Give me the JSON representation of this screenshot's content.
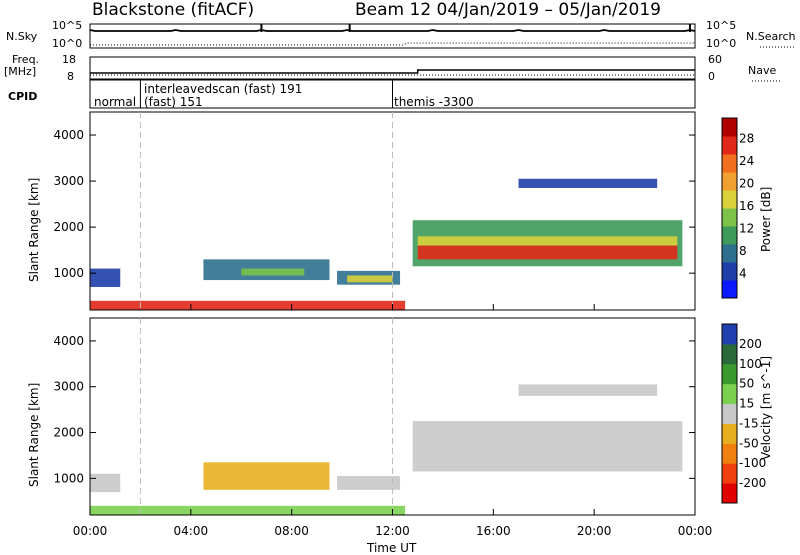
{
  "header": {
    "title": "Blackstone (fitACF)",
    "subtitle": "Beam 12  04/Jan/2019 – 05/Jan/2019"
  },
  "side_labels": {
    "nsky": "N.Sky",
    "freq": "Freq.",
    "freq_unit": "[MHz]",
    "cpid": "CPID",
    "nsearch": "N.Search",
    "nave": "Nave"
  },
  "strip_ticks": {
    "nsky_left_top": "10^5",
    "nsky_left_bottom": "10^0",
    "nsky_right_top": "10^5",
    "nsky_right_bottom": "10^0",
    "freq_left_top": "18",
    "freq_left_bottom": "8",
    "nave_right_top": "60",
    "nave_right_bottom": "0"
  },
  "cpid_segments": [
    {
      "label": "normal",
      "start_hr": 0.0,
      "end_hr": 2.0
    },
    {
      "label": "interleavedscan (fast) 191",
      "label2": "(fast) 151",
      "start_hr": 2.0,
      "end_hr": 12.0
    },
    {
      "label": "themis -3300",
      "start_hr": 12.0,
      "end_hr": 24.0
    }
  ],
  "chart_data": {
    "type": "heatmap",
    "xlabel": "Time UT",
    "x_ticks": [
      "00:00",
      "04:00",
      "08:00",
      "12:00",
      "16:00",
      "20:00",
      "00:00"
    ],
    "x_tick_hours": [
      0,
      4,
      8,
      12,
      16,
      20,
      24
    ],
    "xlim_hours": [
      0,
      24
    ],
    "panels": [
      {
        "name": "power",
        "ylabel": "Slant Range [km]",
        "ylim": [
          200,
          4500
        ],
        "y_ticks": [
          1000,
          2000,
          3000,
          4000
        ],
        "colorbar_label": "Power [dB]",
        "colorbar_ticks": [
          "4",
          "8",
          "12",
          "16",
          "20",
          "24",
          "28"
        ],
        "colorbar_colors": [
          "#0a1aff",
          "#1e3fa8",
          "#2e6f8f",
          "#3d9a5a",
          "#7cc24a",
          "#d9d23a",
          "#f0a030",
          "#f07020",
          "#e02818",
          "#b00000"
        ]
      },
      {
        "name": "velocity",
        "ylabel": "Slant Range [km]",
        "ylim": [
          200,
          4500
        ],
        "y_ticks": [
          1000,
          2000,
          3000,
          4000
        ],
        "colorbar_label": "Velocity [m s^-1]",
        "colorbar_ticks": [
          "200",
          "100",
          "50",
          "15",
          "-15",
          "-50",
          "-100",
          "-200"
        ],
        "colorbar_colors": [
          "#2040b0",
          "#2a6a3a",
          "#3a9a30",
          "#7cd050",
          "#c8c8c8",
          "#e8b020",
          "#f08010",
          "#f04010",
          "#e00000"
        ]
      }
    ]
  }
}
